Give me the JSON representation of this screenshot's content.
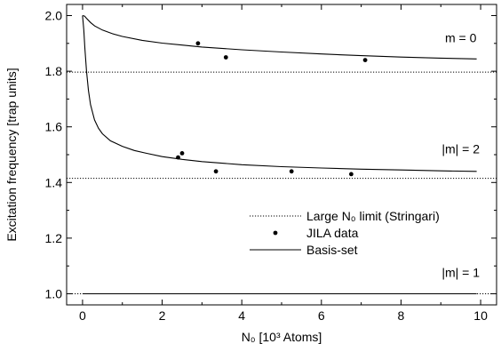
{
  "chart_data": {
    "type": "line",
    "title": "",
    "xlabel": "N₀ [10³ Atoms]",
    "ylabel": "Excitation frequency [trap units]",
    "xlim": [
      -0.4,
      10.4
    ],
    "ylim": [
      0.96,
      2.04
    ],
    "x_ticks": [
      0,
      2,
      4,
      6,
      8,
      10
    ],
    "y_ticks": [
      1.0,
      1.2,
      1.4,
      1.6,
      1.8,
      2.0
    ],
    "x_tick_labels": [
      "0",
      "2",
      "4",
      "6",
      "8",
      "10"
    ],
    "y_tick_labels": [
      "1.0",
      "1.2",
      "1.4",
      "1.6",
      "1.8",
      "2.0"
    ],
    "grid": false,
    "legend_position": "bottom-right",
    "legend": [
      {
        "label": "Large N₀ limit (Stringari)",
        "style": "dotted"
      },
      {
        "label": "JILA data",
        "style": "marker"
      },
      {
        "label": "Basis-set",
        "style": "solid"
      }
    ],
    "annotations": [
      {
        "text": "m = 0",
        "x": 9.5,
        "y": 1.905
      },
      {
        "text": "|m| = 2",
        "x": 9.5,
        "y": 1.505
      },
      {
        "text": "|m| = 1",
        "x": 9.5,
        "y": 1.06
      }
    ],
    "limits": [
      {
        "name": "m0",
        "y": 1.797
      },
      {
        "name": "m2",
        "y": 1.415
      },
      {
        "name": "m1",
        "y": 1.0
      }
    ],
    "series": [
      {
        "name": "Basis-set",
        "style": "solid",
        "curves": [
          {
            "branch": "m = 0",
            "x": [
              0,
              0.05,
              0.1,
              0.2,
              0.3,
              0.5,
              0.75,
              1.0,
              1.5,
              2.0,
              2.5,
              3.0,
              4.0,
              5.0,
              6.0,
              7.0,
              8.0,
              9.0,
              9.9
            ],
            "y": [
              2.0,
              1.998,
              1.99,
              1.975,
              1.963,
              1.948,
              1.935,
              1.925,
              1.911,
              1.901,
              1.894,
              1.887,
              1.877,
              1.869,
              1.862,
              1.856,
              1.851,
              1.847,
              1.844
            ]
          },
          {
            "branch": "|m| = 2",
            "x": [
              0,
              0.03,
              0.06,
              0.1,
              0.15,
              0.2,
              0.3,
              0.4,
              0.5,
              0.7,
              1.0,
              1.3,
              1.6,
              2.0,
              2.5,
              3.0,
              4.0,
              5.0,
              6.0,
              7.0,
              8.0,
              9.0,
              9.9
            ],
            "y": [
              2.0,
              1.95,
              1.88,
              1.8,
              1.73,
              1.68,
              1.625,
              1.595,
              1.575,
              1.55,
              1.53,
              1.515,
              1.505,
              1.493,
              1.483,
              1.475,
              1.464,
              1.457,
              1.452,
              1.448,
              1.445,
              1.442,
              1.44
            ]
          },
          {
            "branch": "|m| = 1",
            "x": [
              0,
              9.9
            ],
            "y": [
              1.0,
              1.0
            ]
          }
        ]
      },
      {
        "name": "JILA data",
        "style": "marker",
        "points": [
          {
            "x": 2.9,
            "y": 1.9
          },
          {
            "x": 3.6,
            "y": 1.85
          },
          {
            "x": 7.1,
            "y": 1.84
          },
          {
            "x": 2.4,
            "y": 1.49
          },
          {
            "x": 2.5,
            "y": 1.505
          },
          {
            "x": 3.35,
            "y": 1.44
          },
          {
            "x": 5.25,
            "y": 1.44
          },
          {
            "x": 6.75,
            "y": 1.43
          }
        ]
      }
    ]
  }
}
